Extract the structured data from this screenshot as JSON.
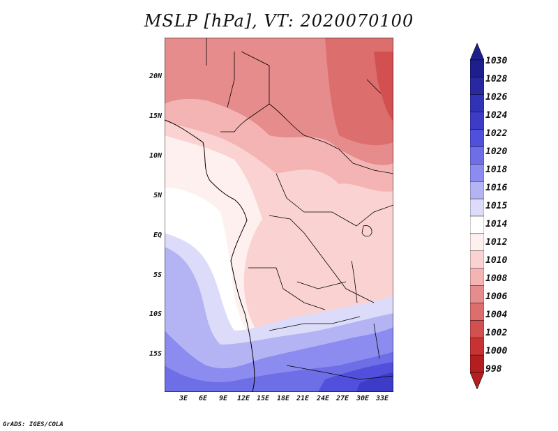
{
  "title": "MSLP [hPa], VT: 2020070100",
  "credit": "GrADS: IGES/COLA",
  "map": {
    "lat_labels": [
      "20N",
      "15N",
      "10N",
      "5N",
      "EQ",
      "5S",
      "10S",
      "15S"
    ],
    "lon_labels": [
      "3E",
      "6E",
      "9E",
      "12E",
      "15E",
      "18E",
      "21E",
      "24E",
      "27E",
      "30E",
      "33E"
    ]
  },
  "colorbar": {
    "levels": [
      "1030",
      "1028",
      "1026",
      "1024",
      "1022",
      "1020",
      "1018",
      "1016",
      "1015",
      "1014",
      "1012",
      "1010",
      "1008",
      "1006",
      "1004",
      "1002",
      "1000",
      "998"
    ],
    "colors": [
      "#1e1e8c",
      "#2828a0",
      "#3232b4",
      "#3c3cc8",
      "#5050dc",
      "#6e6ee6",
      "#8c8cf0",
      "#b4b4f5",
      "#dcdcfa",
      "#ffffff",
      "#fff0f0",
      "#fad2d2",
      "#f5b4b4",
      "#e68c8c",
      "#dc6e6e",
      "#d25050",
      "#c83232",
      "#b41e1e"
    ]
  }
}
